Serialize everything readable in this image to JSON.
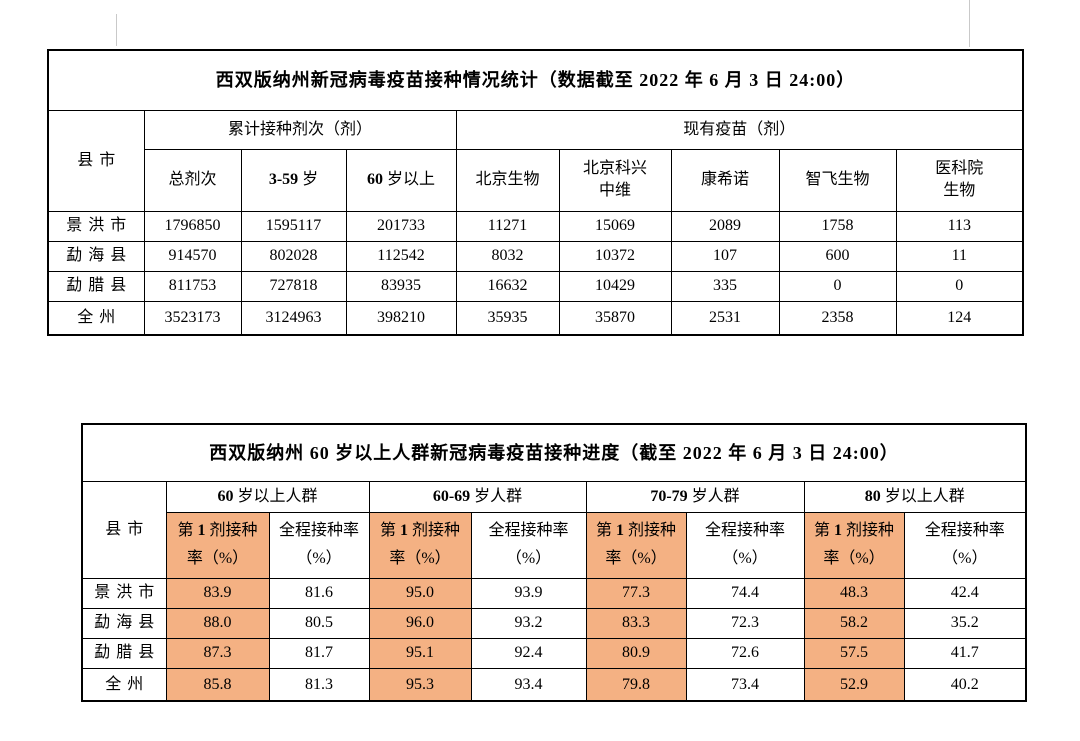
{
  "colors": {
    "highlight": "#f4b183"
  },
  "table1": {
    "title": "西双版纳州新冠病毒疫苗接种情况统计（数据截至 2022 年 6 月 3 日  24:00）",
    "county_header": "县市",
    "group_cumulative": "累计接种剂次（剂）",
    "group_available": "现有疫苗（剂）",
    "subheaders": [
      "总剂次",
      "3-59 岁",
      "60 岁以上",
      "北京生物",
      "北京科兴中维",
      "康希诺",
      "智飞生物",
      "医科院生物"
    ],
    "rows": [
      {
        "name": "景洪市",
        "values": [
          "1796850",
          "1595117",
          "201733",
          "11271",
          "15069",
          "2089",
          "1758",
          "113"
        ]
      },
      {
        "name": "勐海县",
        "values": [
          "914570",
          "802028",
          "112542",
          "8032",
          "10372",
          "107",
          "600",
          "11"
        ]
      },
      {
        "name": "勐腊县",
        "values": [
          "811753",
          "727818",
          "83935",
          "16632",
          "10429",
          "335",
          "0",
          "0"
        ]
      },
      {
        "name": "全州",
        "values": [
          "3523173",
          "3124963",
          "398210",
          "35935",
          "35870",
          "2531",
          "2358",
          "124"
        ]
      }
    ]
  },
  "table2": {
    "title": "西双版纳州 60 岁以上人群新冠病毒疫苗接种进度（截至 2022 年 6 月 3 日  24:00）",
    "county_header": "县市",
    "groups": [
      "60 岁以上人群",
      "60-69 岁人群",
      "70-79 岁人群",
      "80 岁以上人群"
    ],
    "subheaders": [
      "第 1 剂接种率（%）",
      "全程接种率（%）",
      "第 1 剂接种率（%）",
      "全程接种率（%）",
      "第 1 剂接种率（%）",
      "全程接种率（%）",
      "第 1 剂接种率（%）",
      "全程接种率（%）"
    ],
    "rows": [
      {
        "name": "景洪市",
        "values": [
          "83.9",
          "81.6",
          "95.0",
          "93.9",
          "77.3",
          "74.4",
          "48.3",
          "42.4"
        ]
      },
      {
        "name": "勐海县",
        "values": [
          "88.0",
          "80.5",
          "96.0",
          "93.2",
          "83.3",
          "72.3",
          "58.2",
          "35.2"
        ]
      },
      {
        "name": "勐腊县",
        "values": [
          "87.3",
          "81.7",
          "95.1",
          "92.4",
          "80.9",
          "72.6",
          "57.5",
          "41.7"
        ]
      },
      {
        "name": "全州",
        "values": [
          "85.8",
          "81.3",
          "95.3",
          "93.4",
          "79.8",
          "73.4",
          "52.9",
          "40.2"
        ]
      }
    ]
  }
}
